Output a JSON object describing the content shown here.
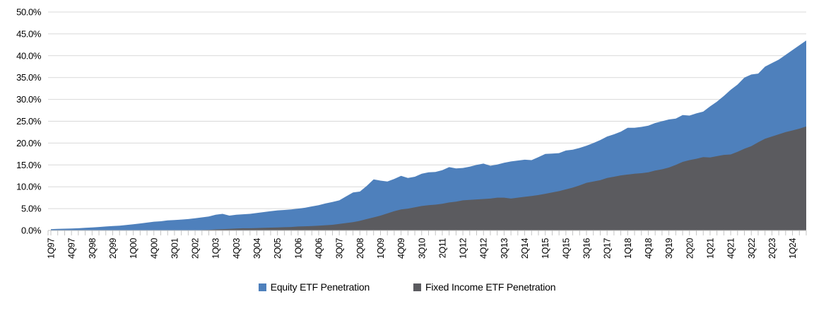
{
  "chart_data": {
    "type": "area",
    "title": "",
    "xlabel": "",
    "ylabel": "",
    "x_unit": "quarterly, 1Q97 through 3Q24 (last two quarters unlabeled)",
    "ylim": [
      0,
      50
    ],
    "grid": true,
    "legend_position": "bottom",
    "overlap_mode": "overlapping (not stacked); Fixed Income series drawn in front of Equity series",
    "y_ticks": [
      {
        "value": 50,
        "label": "50.0%"
      },
      {
        "value": 45,
        "label": "45.0%"
      },
      {
        "value": 40,
        "label": "40.0%"
      },
      {
        "value": 35,
        "label": "35.0%"
      },
      {
        "value": 30,
        "label": "30.0%"
      },
      {
        "value": 25,
        "label": "25.0%"
      },
      {
        "value": 20,
        "label": "20.0%"
      },
      {
        "value": 15,
        "label": "15.0%"
      },
      {
        "value": 10,
        "label": "10.0%"
      },
      {
        "value": 5,
        "label": "5.0%"
      },
      {
        "value": 0,
        "label": "0.0%"
      }
    ],
    "x_tick_labels": [
      "1Q97",
      "4Q97",
      "3Q98",
      "2Q99",
      "1Q00",
      "4Q00",
      "3Q01",
      "2Q02",
      "1Q03",
      "4Q03",
      "3Q04",
      "2Q05",
      "1Q06",
      "4Q06",
      "3Q07",
      "2Q08",
      "1Q09",
      "4Q09",
      "3Q10",
      "2Q11",
      "1Q12",
      "4Q12",
      "3Q13",
      "2Q14",
      "1Q15",
      "4Q15",
      "3Q16",
      "2Q17",
      "1Q18",
      "4Q18",
      "3Q19",
      "2Q20",
      "1Q21",
      "4Q21",
      "3Q22",
      "2Q23",
      "1Q24"
    ],
    "x_tick_every": 3,
    "series": [
      {
        "name": "Equity ETF Penetration",
        "color": "#4e80bc",
        "values": [
          0.3,
          0.35,
          0.4,
          0.45,
          0.5,
          0.6,
          0.7,
          0.8,
          0.9,
          1.0,
          1.1,
          1.25,
          1.4,
          1.6,
          1.8,
          2.0,
          2.1,
          2.3,
          2.4,
          2.5,
          2.6,
          2.8,
          3.0,
          3.2,
          3.6,
          3.8,
          3.4,
          3.6,
          3.7,
          3.8,
          4.0,
          4.2,
          4.4,
          4.6,
          4.7,
          4.8,
          5.0,
          5.2,
          5.5,
          5.8,
          6.2,
          6.5,
          6.9,
          7.8,
          8.7,
          8.9,
          10.2,
          11.7,
          11.4,
          11.2,
          11.8,
          12.5,
          12.0,
          12.3,
          13.0,
          13.3,
          13.4,
          13.8,
          14.5,
          14.2,
          14.3,
          14.6,
          15.0,
          15.3,
          14.8,
          15.1,
          15.5,
          15.8,
          16.0,
          16.2,
          16.1,
          16.8,
          17.5,
          17.6,
          17.7,
          18.3,
          18.5,
          18.9,
          19.4,
          20.0,
          20.7,
          21.5,
          22.0,
          22.6,
          23.5,
          23.5,
          23.7,
          24.0,
          24.6,
          25.0,
          25.4,
          25.6,
          26.4,
          26.3,
          26.8,
          27.2,
          28.4,
          29.5,
          30.8,
          32.2,
          33.4,
          35.0,
          35.7,
          35.9,
          37.5,
          38.3,
          39.1,
          40.2,
          41.3,
          42.4,
          43.5
        ]
      },
      {
        "name": "Fixed Income ETF Penetration",
        "color": "#5b5b5f",
        "values": [
          0,
          0,
          0,
          0,
          0,
          0,
          0,
          0,
          0,
          0,
          0,
          0,
          0,
          0,
          0,
          0,
          0,
          0,
          0,
          0,
          0,
          0.05,
          0.1,
          0.15,
          0.25,
          0.3,
          0.35,
          0.45,
          0.5,
          0.5,
          0.55,
          0.6,
          0.65,
          0.7,
          0.75,
          0.8,
          0.9,
          0.95,
          1.0,
          1.1,
          1.2,
          1.3,
          1.5,
          1.7,
          1.9,
          2.2,
          2.6,
          3.0,
          3.4,
          3.9,
          4.4,
          4.8,
          5.0,
          5.3,
          5.6,
          5.8,
          5.9,
          6.1,
          6.4,
          6.6,
          6.9,
          7.0,
          7.1,
          7.2,
          7.3,
          7.5,
          7.5,
          7.3,
          7.5,
          7.7,
          7.9,
          8.1,
          8.4,
          8.7,
          9.0,
          9.4,
          9.8,
          10.3,
          10.9,
          11.2,
          11.5,
          12.0,
          12.3,
          12.6,
          12.8,
          13.0,
          13.1,
          13.3,
          13.7,
          14.0,
          14.4,
          15.0,
          15.7,
          16.1,
          16.4,
          16.8,
          16.7,
          17.0,
          17.3,
          17.4,
          18.0,
          18.7,
          19.3,
          20.2,
          21.0,
          21.5,
          22.0,
          22.5,
          22.9,
          23.3,
          23.8
        ]
      }
    ],
    "colors": {
      "gridline": "#d9d9d9",
      "axis": "#bfbfbf",
      "text": "#000000",
      "background": "#ffffff"
    }
  }
}
